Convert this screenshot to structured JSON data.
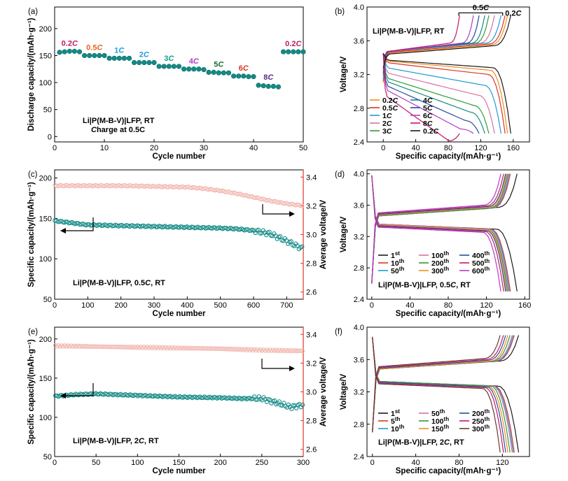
{
  "colors": {
    "teal": "#138a86",
    "red_axis": "#e0362b",
    "red_marker": "#f0b2a8",
    "teal_dark": "#0d6b68"
  },
  "chart_data": [
    {
      "id": "a",
      "type": "scatter",
      "panel_label": "(a)",
      "xlabel": "Cycle number",
      "ylabel": "Discharge capacity/(mAh·g⁻¹)",
      "xlim": [
        0,
        50
      ],
      "ylim": [
        -10,
        240
      ],
      "xticks": [
        "0",
        "10",
        "20",
        "30",
        "40",
        "50"
      ],
      "yticks": [
        "0",
        "50",
        "100",
        "150",
        "200"
      ],
      "notes": [
        "Li|P(M-B-V)|LFP, RT",
        "Charge at 0.5C"
      ],
      "segments": [
        {
          "rate": "0.2C",
          "x": [
            1,
            2,
            3,
            4,
            5
          ],
          "y": [
            156,
            157,
            158,
            158,
            157
          ],
          "label_color": "#c2186b"
        },
        {
          "rate": "0.5C",
          "x": [
            6,
            7,
            8,
            9,
            10
          ],
          "y": [
            150,
            150,
            150,
            150,
            150
          ],
          "label_color": "#e8641b"
        },
        {
          "rate": "1C",
          "x": [
            11,
            12,
            13,
            14,
            15
          ],
          "y": [
            145,
            145,
            145,
            145,
            145
          ],
          "label_color": "#1e9bd7"
        },
        {
          "rate": "2C",
          "x": [
            16,
            17,
            18,
            19,
            20
          ],
          "y": [
            137,
            137,
            137,
            137,
            137
          ],
          "label_color": "#1e9bd7"
        },
        {
          "rate": "3C",
          "x": [
            21,
            22,
            23,
            24,
            25
          ],
          "y": [
            130,
            130,
            130,
            130,
            130
          ],
          "label_color": "#0e9e8e"
        },
        {
          "rate": "4C",
          "x": [
            26,
            27,
            28,
            29,
            30
          ],
          "y": [
            125,
            125,
            125,
            125,
            124
          ],
          "label_color": "#b23cc4"
        },
        {
          "rate": "5C",
          "x": [
            31,
            32,
            33,
            34,
            35
          ],
          "y": [
            119,
            119,
            118,
            118,
            118
          ],
          "label_color": "#1b6e2e"
        },
        {
          "rate": "6C",
          "x": [
            36,
            37,
            38,
            39,
            40
          ],
          "y": [
            112,
            112,
            112,
            111,
            111
          ],
          "label_color": "#d9352a"
        },
        {
          "rate": "8C",
          "x": [
            41,
            42,
            43,
            44,
            45
          ],
          "y": [
            95,
            94,
            93,
            93,
            92
          ],
          "label_color": "#5b2a86"
        },
        {
          "rate": "0.2C",
          "x": [
            46,
            47,
            48,
            49,
            50
          ],
          "y": [
            157,
            157,
            157,
            157,
            157
          ],
          "label_color": "#c2186b"
        }
      ]
    },
    {
      "id": "b",
      "type": "line",
      "panel_label": "(b)",
      "xlabel": "Specific capacity/(mAh·g⁻¹)",
      "ylabel": "Voltage/V",
      "xlim": [
        -20,
        180
      ],
      "ylim": [
        2.4,
        4.0
      ],
      "xticks": [
        "0",
        "40",
        "80",
        "120",
        "160"
      ],
      "yticks": [
        "2.4",
        "2.8",
        "3.2",
        "3.6",
        "4.0"
      ],
      "title": "Li|P(M-B-V)|LFP, RT",
      "annotations": [
        "0.5C",
        "0.2C"
      ],
      "legend": [
        {
          "name": "0.2C",
          "color": "#f08c1d"
        },
        {
          "name": "0.5C",
          "color": "#d9352a"
        },
        {
          "name": "1C",
          "color": "#1e9bd7"
        },
        {
          "name": "2C",
          "color": "#d96fa6"
        },
        {
          "name": "3C",
          "color": "#2e9b3a"
        },
        {
          "name": "4C",
          "color": "#138a86"
        },
        {
          "name": "5C",
          "color": "#2a4aa0"
        },
        {
          "name": "6C",
          "color": "#b23cc4"
        },
        {
          "name": "8C",
          "color": "#c2186b"
        },
        {
          "name": "0.2C",
          "color": "#1a1a1a"
        }
      ],
      "series": [
        {
          "name": "0.2C",
          "cap": 153,
          "charge_v": 3.47,
          "discharge_v": 3.36
        },
        {
          "name": "0.5C",
          "cap": 150,
          "charge_v": 3.48,
          "discharge_v": 3.34
        },
        {
          "name": "1C",
          "cap": 145,
          "charge_v": 3.49,
          "discharge_v": 3.28
        },
        {
          "name": "2C",
          "cap": 137,
          "charge_v": 3.49,
          "discharge_v": 3.22
        },
        {
          "name": "3C",
          "cap": 130,
          "charge_v": 3.49,
          "discharge_v": 3.16
        },
        {
          "name": "4C",
          "cap": 125,
          "charge_v": 3.49,
          "discharge_v": 3.12
        },
        {
          "name": "5C",
          "cap": 118,
          "charge_v": 3.49,
          "discharge_v": 3.07
        },
        {
          "name": "6C",
          "cap": 111,
          "charge_v": 3.49,
          "discharge_v": 3.02
        },
        {
          "name": "8C",
          "cap": 94,
          "charge_v": 3.49,
          "discharge_v": 2.95
        },
        {
          "name": "0.2C",
          "cap": 157,
          "charge_v": 3.46,
          "discharge_v": 3.37
        }
      ]
    },
    {
      "id": "c",
      "type": "scatter",
      "panel_label": "(c)",
      "xlabel": "Cycle number",
      "ylabel": "Specific capacity/(mAh·g⁻¹)",
      "y2label": "Average voltage/V",
      "xlim": [
        0,
        750
      ],
      "ylim": [
        50,
        210
      ],
      "y2lim": [
        2.55,
        3.45
      ],
      "xticks": [
        "0",
        "100",
        "200",
        "300",
        "400",
        "500",
        "600",
        "700"
      ],
      "yticks": [
        "50",
        "100",
        "150",
        "200"
      ],
      "y2ticks": [
        "2.6",
        "2.8",
        "3.0",
        "3.2",
        "3.4"
      ],
      "note": "Li|P(M-B-V)|LFP, 0.5C, RT",
      "capacity": {
        "x": [
          0,
          100,
          200,
          300,
          400,
          500,
          550,
          600,
          650,
          700,
          750
        ],
        "y": [
          147,
          142,
          141,
          140,
          139,
          138,
          137,
          135,
          131,
          122,
          112
        ]
      },
      "avg_voltage": {
        "x": [
          0,
          100,
          200,
          300,
          400,
          450,
          500,
          550,
          600,
          650,
          700,
          750
        ],
        "y": [
          3.34,
          3.34,
          3.34,
          3.335,
          3.33,
          3.32,
          3.305,
          3.285,
          3.26,
          3.235,
          3.215,
          3.2
        ]
      }
    },
    {
      "id": "d",
      "type": "line",
      "panel_label": "(d)",
      "xlabel": "Specific capacity/(mAh·g⁻¹)",
      "ylabel": "Voltage/V",
      "xlim": [
        -5,
        165
      ],
      "ylim": [
        2.4,
        4.05
      ],
      "xticks": [
        "0",
        "40",
        "80",
        "120",
        "160"
      ],
      "yticks": [
        "2.4",
        "2.8",
        "3.2",
        "3.6",
        "4.0"
      ],
      "title": "Li|P(M-B-V)|LFP, 0.5C, RT",
      "legend": [
        {
          "name": "1st",
          "color": "#1a1a1a"
        },
        {
          "name": "10th",
          "color": "#d9352a"
        },
        {
          "name": "50th",
          "color": "#1e9bd7"
        },
        {
          "name": "100th",
          "color": "#d96fa6"
        },
        {
          "name": "200th",
          "color": "#2e9b3a"
        },
        {
          "name": "300th",
          "color": "#f08c1d"
        },
        {
          "name": "400th",
          "color": "#2a4aa0"
        },
        {
          "name": "500th",
          "color": "#c2186b"
        },
        {
          "name": "600th",
          "color": "#b23cc4"
        }
      ],
      "series": [
        {
          "name": "1st",
          "cap": 152,
          "charge_v": 3.49,
          "discharge_v": 3.36
        },
        {
          "name": "10th",
          "cap": 145,
          "charge_v": 3.48,
          "discharge_v": 3.36
        },
        {
          "name": "50th",
          "cap": 144,
          "charge_v": 3.48,
          "discharge_v": 3.36
        },
        {
          "name": "100th",
          "cap": 143,
          "charge_v": 3.48,
          "discharge_v": 3.36
        },
        {
          "name": "200th",
          "cap": 142,
          "charge_v": 3.48,
          "discharge_v": 3.35
        },
        {
          "name": "300th",
          "cap": 141,
          "charge_v": 3.49,
          "discharge_v": 3.35
        },
        {
          "name": "400th",
          "cap": 140,
          "charge_v": 3.5,
          "discharge_v": 3.34
        },
        {
          "name": "500th",
          "cap": 138,
          "charge_v": 3.51,
          "discharge_v": 3.33
        },
        {
          "name": "600th",
          "cap": 135,
          "charge_v": 3.52,
          "discharge_v": 3.32
        }
      ]
    },
    {
      "id": "e",
      "type": "scatter",
      "panel_label": "(e)",
      "xlabel": "Cycle number",
      "ylabel": "Specific capacity/(mAh·g⁻¹)",
      "y2label": "Average voltage/V",
      "xlim": [
        0,
        300
      ],
      "ylim": [
        50,
        215
      ],
      "y2lim": [
        2.55,
        3.45
      ],
      "xticks": [
        "0",
        "50",
        "100",
        "150",
        "200",
        "250",
        "300"
      ],
      "yticks": [
        "50",
        "100",
        "150",
        "200"
      ],
      "y2ticks": [
        "2.6",
        "2.8",
        "3.0",
        "3.2",
        "3.4"
      ],
      "note": "Li|P(M-B-V)|LFP, 2C, RT",
      "capacity": {
        "x": [
          0,
          25,
          50,
          100,
          150,
          200,
          225,
          250,
          270,
          285,
          300
        ],
        "y": [
          127,
          129,
          130,
          128,
          126,
          125,
          124,
          124,
          118,
          113,
          116
        ]
      },
      "avg_voltage": {
        "x": [
          0,
          50,
          100,
          150,
          200,
          250,
          300
        ],
        "y": [
          3.32,
          3.315,
          3.31,
          3.305,
          3.3,
          3.29,
          3.285
        ]
      }
    },
    {
      "id": "f",
      "type": "line",
      "panel_label": "(f)",
      "xlabel": "Specific capacity/(mAh·g⁻¹)",
      "ylabel": "Voltage/V",
      "xlim": [
        -5,
        145
      ],
      "ylim": [
        2.4,
        4.0
      ],
      "xticks": [
        "0",
        "40",
        "80",
        "120"
      ],
      "yticks": [
        "2.4",
        "2.8",
        "3.2",
        "3.6",
        "4.0"
      ],
      "title": "Li|P(M-B-V)|LFP, 2C, RT",
      "legend": [
        {
          "name": "1st",
          "color": "#1a1a1a"
        },
        {
          "name": "5th",
          "color": "#d9352a"
        },
        {
          "name": "10th",
          "color": "#1e9bd7"
        },
        {
          "name": "50th",
          "color": "#d96fa6"
        },
        {
          "name": "100th",
          "color": "#2e9b3a"
        },
        {
          "name": "150th",
          "color": "#f08c1d"
        },
        {
          "name": "200th",
          "color": "#2a4aa0"
        },
        {
          "name": "250th",
          "color": "#c2186b"
        },
        {
          "name": "300th",
          "color": "#6b3a2a"
        }
      ],
      "series": [
        {
          "name": "1st",
          "cap": 135,
          "charge_v": 3.5,
          "discharge_v": 3.33
        },
        {
          "name": "5th",
          "cap": 131,
          "charge_v": 3.5,
          "discharge_v": 3.33
        },
        {
          "name": "10th",
          "cap": 130,
          "charge_v": 3.5,
          "discharge_v": 3.33
        },
        {
          "name": "50th",
          "cap": 129,
          "charge_v": 3.5,
          "discharge_v": 3.33
        },
        {
          "name": "100th",
          "cap": 127,
          "charge_v": 3.5,
          "discharge_v": 3.33
        },
        {
          "name": "150th",
          "cap": 125,
          "charge_v": 3.5,
          "discharge_v": 3.32
        },
        {
          "name": "200th",
          "cap": 123,
          "charge_v": 3.51,
          "discharge_v": 3.32
        },
        {
          "name": "250th",
          "cap": 121,
          "charge_v": 3.52,
          "discharge_v": 3.31
        },
        {
          "name": "300th",
          "cap": 118,
          "charge_v": 3.53,
          "discharge_v": 3.3
        }
      ]
    }
  ]
}
